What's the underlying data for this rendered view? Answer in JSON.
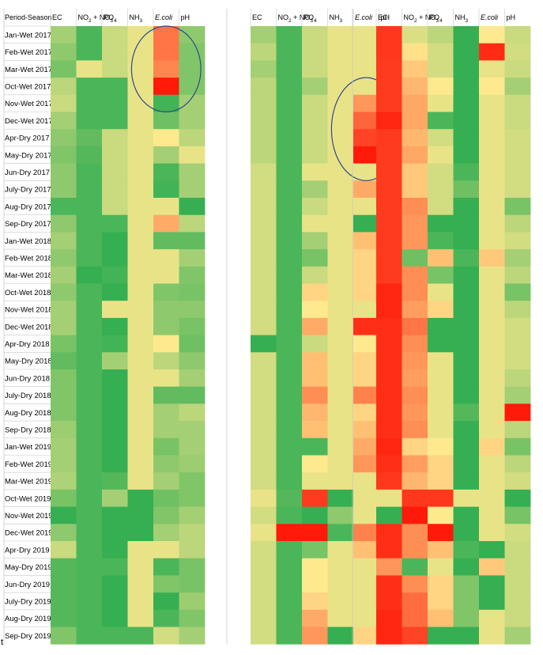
{
  "chart_data": {
    "type": "heatmap",
    "title": "",
    "row_header": "Period-Season",
    "columns": [
      {
        "base": "EC",
        "sub": "",
        "tail": "",
        "italic": false
      },
      {
        "base": "NO",
        "sub": "2",
        "tail": " + NO",
        "sub2": "3",
        "italic": false
      },
      {
        "base": "PO",
        "sub": "4",
        "tail": "",
        "italic": false
      },
      {
        "base": "NH",
        "sub": "3",
        "tail": "",
        "italic": false
      },
      {
        "base": "E.coli",
        "sub": "",
        "tail": "",
        "italic": true
      },
      {
        "base": "pH",
        "sub": "",
        "tail": "",
        "italic": false
      }
    ],
    "rows": [
      "Jan-Wet 2017",
      "Feb-Wet 2017",
      "Mar-Wet 2017",
      "Oct-Wet 2017",
      "Nov-Wet 2017",
      "Dec-Wet 2017",
      "Apr-Dry 2017",
      "May-Dry 2017",
      "Jun-Dry 2017",
      "July-Dry 2017",
      "Aug-Dry 2017",
      "Sep-Dry 2017",
      "Jan-Wet 2018",
      "Feb-Wet 2018",
      "Mar-Wet 2018",
      "Oct-Wet 2018",
      "Nov-Wet 2018",
      "Dec-Wet 2018",
      "Apr-Dry 2018",
      "May-Dry 2018",
      "Jun-Dry 2018",
      "July-Dry 2018",
      "Aug-Dry 2018",
      "Sep-Dry 2018",
      "Jan-Wet 2019",
      "Feb-Wet 2019",
      "Mar-Wet 2019",
      "Oct-Wet 2019",
      "Nov-Wet 2019",
      "Dec-Wet 2019",
      "Apr-Dry 2019",
      "May-Dry 2019",
      "Jun-Dry 2019",
      "July-Dry 2019",
      "Aug-Dry 2019",
      "Sep-Dry 2019"
    ],
    "color_scale": {
      "low": "#1ea94b",
      "mid": "#ffe98f",
      "high": "#ff1a0a",
      "range": [
        0,
        1
      ]
    },
    "panels": [
      {
        "values": [
          [
            0.3,
            0.1,
            0.38,
            0.45,
            0.78,
            0.25
          ],
          [
            0.25,
            0.1,
            0.38,
            0.45,
            0.78,
            0.22
          ],
          [
            0.2,
            0.45,
            0.38,
            0.45,
            0.74,
            0.22
          ],
          [
            0.35,
            0.1,
            0.1,
            0.45,
            1.0,
            0.22
          ],
          [
            0.38,
            0.1,
            0.1,
            0.45,
            0.08,
            0.3
          ],
          [
            0.3,
            0.1,
            0.1,
            0.45,
            0.18,
            0.3
          ],
          [
            0.25,
            0.15,
            0.38,
            0.45,
            0.5,
            0.35
          ],
          [
            0.22,
            0.12,
            0.38,
            0.45,
            0.3,
            0.45
          ],
          [
            0.25,
            0.1,
            0.38,
            0.45,
            0.1,
            0.3
          ],
          [
            0.25,
            0.1,
            0.38,
            0.45,
            0.08,
            0.3
          ],
          [
            0.1,
            0.1,
            0.38,
            0.45,
            0.45,
            0.05
          ],
          [
            0.25,
            0.1,
            0.1,
            0.45,
            0.65,
            0.35
          ],
          [
            0.3,
            0.1,
            0.05,
            0.45,
            0.15,
            0.15
          ],
          [
            0.25,
            0.1,
            0.05,
            0.45,
            0.45,
            0.3
          ],
          [
            0.3,
            0.05,
            0.08,
            0.45,
            0.45,
            0.22
          ],
          [
            0.25,
            0.1,
            0.05,
            0.45,
            0.22,
            0.2
          ],
          [
            0.3,
            0.1,
            0.45,
            0.45,
            0.25,
            0.25
          ],
          [
            0.3,
            0.1,
            0.05,
            0.45,
            0.25,
            0.2
          ],
          [
            0.2,
            0.1,
            0.08,
            0.45,
            0.5,
            0.18
          ],
          [
            0.15,
            0.1,
            0.3,
            0.45,
            0.35,
            0.25
          ],
          [
            0.22,
            0.1,
            0.05,
            0.45,
            0.45,
            0.3
          ],
          [
            0.22,
            0.1,
            0.05,
            0.45,
            0.15,
            0.15
          ],
          [
            0.22,
            0.1,
            0.05,
            0.45,
            0.3,
            0.35
          ],
          [
            0.28,
            0.1,
            0.05,
            0.45,
            0.3,
            0.3
          ],
          [
            0.3,
            0.1,
            0.05,
            0.45,
            0.2,
            0.3
          ],
          [
            0.3,
            0.1,
            0.05,
            0.45,
            0.25,
            0.28
          ],
          [
            0.32,
            0.1,
            0.12,
            0.45,
            0.3,
            0.22
          ],
          [
            0.2,
            0.1,
            0.3,
            0.05,
            0.18,
            0.22
          ],
          [
            0.05,
            0.1,
            0.05,
            0.05,
            0.22,
            0.3
          ],
          [
            0.25,
            0.1,
            0.05,
            0.05,
            0.3,
            0.35
          ],
          [
            0.38,
            0.1,
            0.05,
            0.45,
            0.45,
            0.35
          ],
          [
            0.12,
            0.1,
            0.1,
            0.45,
            0.1,
            0.2
          ],
          [
            0.12,
            0.1,
            0.05,
            0.45,
            0.22,
            0.2
          ],
          [
            0.12,
            0.1,
            0.05,
            0.45,
            0.05,
            0.28
          ],
          [
            0.12,
            0.1,
            0.05,
            0.45,
            0.1,
            0.22
          ],
          [
            0.22,
            0.1,
            0.1,
            0.1,
            0.4,
            0.3
          ]
        ],
        "circles": [
          {
            "col": 4,
            "row_from": 0,
            "row_to": 4
          }
        ]
      },
      {
        "values": [
          [
            0.3,
            0.1,
            0.38,
            0.45,
            0.45,
            0.35
          ],
          [
            0.35,
            0.1,
            0.38,
            0.45,
            0.45,
            0.35
          ],
          [
            0.3,
            0.1,
            0.38,
            0.45,
            0.45,
            0.25
          ],
          [
            0.35,
            0.1,
            0.3,
            0.45,
            0.45,
            0.3
          ],
          [
            0.35,
            0.1,
            0.38,
            0.45,
            0.7,
            0.4
          ],
          [
            0.35,
            0.1,
            0.38,
            0.45,
            0.82,
            0.4
          ],
          [
            0.35,
            0.1,
            0.38,
            0.45,
            0.9,
            0.4
          ],
          [
            0.35,
            0.1,
            0.38,
            0.45,
            1.0,
            0.4
          ],
          [
            0.4,
            0.1,
            0.45,
            0.45,
            0.45,
            0.4
          ],
          [
            0.4,
            0.1,
            0.3,
            0.45,
            0.65,
            0.4
          ],
          [
            0.4,
            0.1,
            0.38,
            0.45,
            0.45,
            0.3
          ],
          [
            0.4,
            0.1,
            0.45,
            0.45,
            0.05,
            0.38
          ],
          [
            0.4,
            0.1,
            0.3,
            0.45,
            0.6,
            0.05
          ],
          [
            0.4,
            0.1,
            0.2,
            0.45,
            0.55,
            0.38
          ],
          [
            0.4,
            0.1,
            0.38,
            0.45,
            0.55,
            0.3
          ],
          [
            0.4,
            0.1,
            0.55,
            0.45,
            0.55,
            0.38
          ],
          [
            0.4,
            0.1,
            0.5,
            0.45,
            0.45,
            0.35
          ],
          [
            0.4,
            0.1,
            0.65,
            0.45,
            0.95,
            0.4
          ],
          [
            0.05,
            0.1,
            0.38,
            0.45,
            0.5,
            0.3
          ],
          [
            0.4,
            0.1,
            0.6,
            0.45,
            0.55,
            0.3
          ],
          [
            0.4,
            0.1,
            0.6,
            0.45,
            0.55,
            0.3
          ],
          [
            0.4,
            0.1,
            0.72,
            0.45,
            0.75,
            0.3
          ],
          [
            0.4,
            0.1,
            0.62,
            0.45,
            0.55,
            0.3
          ],
          [
            0.4,
            0.1,
            0.6,
            0.45,
            0.6,
            0.35
          ],
          [
            0.4,
            0.1,
            0.1,
            0.45,
            0.65,
            0.3
          ],
          [
            0.4,
            0.1,
            0.5,
            0.45,
            0.7,
            0.3
          ],
          [
            0.4,
            0.1,
            0.45,
            0.45,
            0.45,
            0.3
          ],
          [
            0.45,
            0.12,
            0.92,
            0.05,
            0.45,
            0.3
          ],
          [
            0.4,
            0.1,
            0.05,
            0.25,
            0.45,
            1.0
          ],
          [
            0.45,
            1.0,
            1.0,
            0.1,
            0.75,
            0.45
          ],
          [
            0.4,
            0.1,
            0.2,
            0.45,
            0.6,
            0.3
          ],
          [
            0.4,
            0.1,
            0.5,
            0.45,
            0.45,
            0.38
          ],
          [
            0.4,
            0.1,
            0.5,
            0.45,
            0.45,
            0.38
          ],
          [
            0.4,
            0.1,
            0.55,
            0.45,
            0.45,
            0.38
          ],
          [
            0.4,
            0.1,
            0.65,
            0.45,
            0.45,
            0.38
          ],
          [
            0.4,
            0.1,
            0.7,
            0.05,
            0.55,
            0.3
          ]
        ],
        "circles": [
          {
            "col": 4,
            "row_from": 3,
            "row_to": 8
          }
        ]
      },
      {
        "values": [
          [
            0.93,
            0.42,
            0.35,
            0.05,
            0.5,
            0.38
          ],
          [
            0.93,
            0.52,
            0.4,
            0.05,
            0.96,
            0.4
          ],
          [
            0.92,
            0.58,
            0.4,
            0.05,
            0.45,
            0.38
          ],
          [
            0.92,
            0.62,
            0.5,
            0.05,
            0.5,
            0.3
          ],
          [
            0.92,
            0.66,
            0.45,
            0.05,
            0.45,
            0.38
          ],
          [
            0.97,
            0.66,
            0.1,
            0.05,
            0.45,
            0.38
          ],
          [
            0.92,
            0.62,
            0.4,
            0.05,
            0.45,
            0.4
          ],
          [
            0.92,
            0.66,
            0.45,
            0.05,
            0.45,
            0.4
          ],
          [
            0.92,
            0.58,
            0.4,
            0.1,
            0.45,
            0.4
          ],
          [
            0.92,
            0.58,
            0.4,
            0.18,
            0.45,
            0.4
          ],
          [
            0.92,
            0.72,
            0.4,
            0.05,
            0.45,
            0.2
          ],
          [
            0.92,
            0.7,
            0.05,
            0.05,
            0.45,
            0.35
          ],
          [
            0.92,
            0.7,
            0.1,
            0.05,
            0.45,
            0.4
          ],
          [
            0.92,
            0.18,
            0.6,
            0.1,
            0.58,
            0.3
          ],
          [
            0.92,
            0.72,
            0.2,
            0.05,
            0.45,
            0.35
          ],
          [
            0.97,
            0.72,
            0.45,
            0.05,
            0.45,
            0.2
          ],
          [
            0.97,
            0.68,
            0.55,
            0.05,
            0.45,
            0.35
          ],
          [
            0.95,
            0.78,
            0.05,
            0.05,
            0.45,
            0.4
          ],
          [
            0.95,
            0.72,
            0.05,
            0.05,
            0.45,
            0.4
          ],
          [
            0.95,
            0.7,
            0.45,
            0.05,
            0.45,
            0.4
          ],
          [
            0.95,
            0.68,
            0.45,
            0.05,
            0.45,
            0.35
          ],
          [
            0.95,
            0.72,
            0.45,
            0.05,
            0.45,
            0.3
          ],
          [
            0.95,
            0.7,
            0.45,
            0.12,
            0.45,
            1.0
          ],
          [
            0.95,
            0.72,
            0.45,
            0.05,
            0.45,
            0.35
          ],
          [
            0.97,
            0.55,
            0.5,
            0.05,
            0.55,
            0.2
          ],
          [
            0.95,
            0.68,
            0.55,
            0.05,
            0.45,
            0.35
          ],
          [
            0.93,
            0.62,
            0.55,
            0.05,
            0.45,
            0.4
          ],
          [
            0.45,
            0.93,
            0.93,
            0.45,
            0.45,
            0.05
          ],
          [
            0.05,
            1.0,
            0.5,
            0.05,
            0.45,
            0.2
          ],
          [
            0.95,
            0.72,
            1.0,
            0.05,
            0.45,
            0.4
          ],
          [
            0.95,
            0.72,
            0.6,
            0.1,
            0.05,
            0.38
          ],
          [
            0.7,
            0.1,
            0.45,
            0.05,
            0.58,
            0.38
          ],
          [
            0.95,
            0.72,
            0.55,
            0.22,
            0.05,
            0.38
          ],
          [
            0.95,
            0.8,
            0.55,
            0.22,
            0.05,
            0.38
          ],
          [
            0.97,
            0.8,
            0.6,
            0.22,
            0.45,
            0.38
          ],
          [
            0.97,
            0.9,
            0.05,
            0.05,
            0.45,
            0.3
          ]
        ],
        "circles": []
      }
    ]
  },
  "footer_mark": "t"
}
